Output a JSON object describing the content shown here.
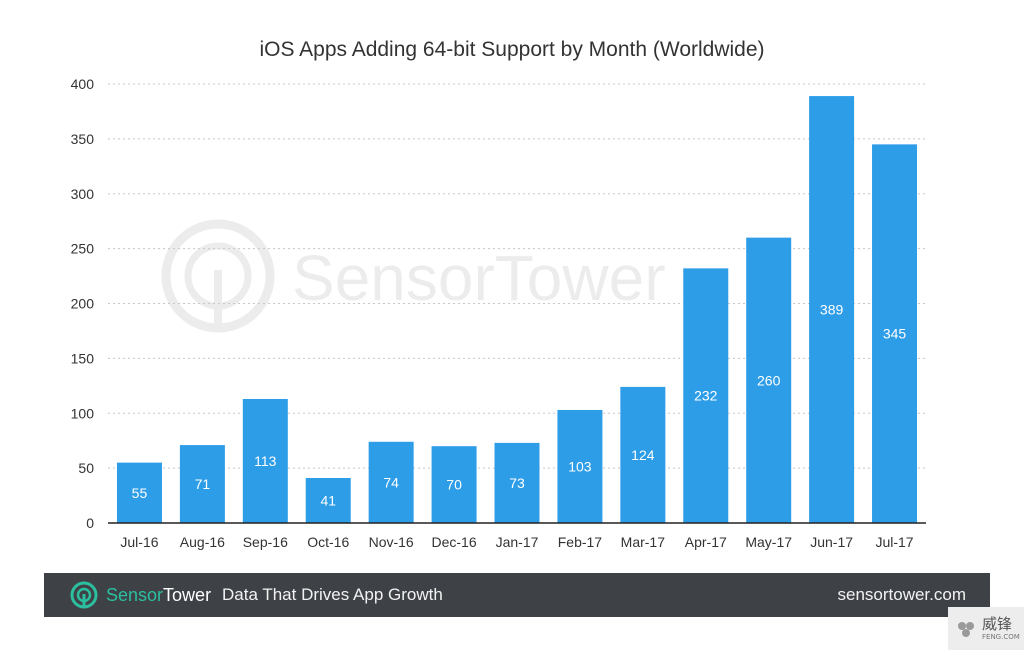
{
  "chart_data": {
    "type": "bar",
    "title": "iOS Apps Adding 64-bit Support by Month (Worldwide)",
    "categories": [
      "Jul-16",
      "Aug-16",
      "Sep-16",
      "Oct-16",
      "Nov-16",
      "Dec-16",
      "Jan-17",
      "Feb-17",
      "Mar-17",
      "Apr-17",
      "May-17",
      "Jun-17",
      "Jul-17"
    ],
    "values": [
      55,
      71,
      113,
      41,
      74,
      70,
      73,
      103,
      124,
      232,
      260,
      389,
      345
    ],
    "yticks": [
      0,
      50,
      100,
      150,
      200,
      250,
      300,
      350,
      400
    ],
    "ylim": [
      0,
      400
    ],
    "xlabel": "",
    "ylabel": "",
    "grid": true,
    "bar_color": "#2d9de8",
    "watermark": "SensorTower"
  },
  "footer": {
    "brand_part1": "Sensor",
    "brand_part2": "Tower",
    "tagline": "Data That Drives App Growth",
    "url": "sensortower.com",
    "background_color": "#3e4247",
    "brand_color": "#2bbfa0"
  },
  "corner_badge": {
    "text": "威锋",
    "subtext": "FENG.COM"
  }
}
